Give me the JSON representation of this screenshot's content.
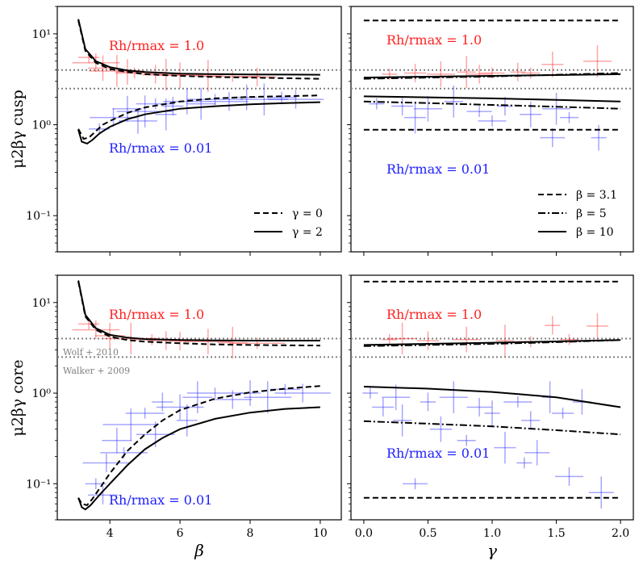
{
  "figure": {
    "y_labels": {
      "top": "μ2βγ cusp",
      "bottom": "μ2βγ core"
    },
    "x_labels": {
      "left": "β",
      "right": "γ"
    },
    "ref_labels": {
      "wolf": "Wolf + 2010",
      "walker": "Walker + 2009"
    },
    "annot_high": "Rh/rmax = 1.0",
    "annot_low": "Rh/rmax = 0.01",
    "legend_gamma": [
      {
        "label": "γ = 0",
        "style": "dashed"
      },
      {
        "label": "γ = 2",
        "style": "solid"
      }
    ],
    "legend_beta": [
      {
        "label": "β = 3.1",
        "style": "dashed"
      },
      {
        "label": "β = 5",
        "style": "dashdot"
      },
      {
        "label": "β = 10",
        "style": "solid"
      }
    ],
    "colors": {
      "high": "#ff2020",
      "low": "#2020ff",
      "ref": "#808080"
    }
  },
  "chart_data": [
    {
      "id": "cusp-beta",
      "type": "line",
      "xlabel": "β",
      "ylabel": "μ2βγ cusp",
      "xlim": [
        2.5,
        10.6
      ],
      "ylim": [
        0.04,
        20
      ],
      "yscale": "log",
      "xticks": [
        4,
        6,
        8,
        10
      ],
      "yticks": [
        0.1,
        1,
        10
      ],
      "reference_lines": [
        {
          "y": 4.0,
          "label": "Wolf + 2010"
        },
        {
          "y": 2.5,
          "label": "Walker + 2009"
        }
      ],
      "series": [
        {
          "name": "γ = 0, Rh/rmax = 1.0",
          "style": "dashed",
          "x": [
            3.1,
            3.3,
            3.6,
            4.0,
            4.5,
            5,
            6,
            7,
            8,
            9,
            10
          ],
          "y": [
            14,
            6.5,
            4.8,
            4.1,
            3.8,
            3.6,
            3.45,
            3.35,
            3.3,
            3.25,
            3.2
          ]
        },
        {
          "name": "γ = 2, Rh/rmax = 1.0",
          "style": "solid",
          "x": [
            3.1,
            3.3,
            3.6,
            4.0,
            4.5,
            5,
            6,
            7,
            8,
            9,
            10
          ],
          "y": [
            14.5,
            6.8,
            5.0,
            4.3,
            3.95,
            3.8,
            3.65,
            3.6,
            3.58,
            3.56,
            3.55
          ]
        },
        {
          "name": "γ = 0, Rh/rmax = 0.01",
          "style": "dashed",
          "x": [
            3.1,
            3.25,
            3.4,
            3.6,
            3.8,
            4,
            4.5,
            5,
            6,
            7,
            8,
            9,
            10
          ],
          "y": [
            0.9,
            0.7,
            0.72,
            0.85,
            1.0,
            1.1,
            1.35,
            1.55,
            1.8,
            1.95,
            2.02,
            2.06,
            2.1
          ]
        },
        {
          "name": "γ = 2, Rh/rmax = 0.01",
          "style": "solid",
          "x": [
            3.1,
            3.2,
            3.35,
            3.5,
            3.7,
            4,
            4.5,
            5,
            6,
            7,
            8,
            9,
            10
          ],
          "y": [
            0.88,
            0.65,
            0.62,
            0.68,
            0.8,
            0.95,
            1.15,
            1.3,
            1.5,
            1.6,
            1.68,
            1.73,
            1.77
          ]
        }
      ]
    },
    {
      "id": "cusp-gamma",
      "type": "line",
      "xlabel": "γ",
      "ylabel": "μ2βγ cusp",
      "xlim": [
        -0.1,
        2.1
      ],
      "ylim": [
        0.04,
        20
      ],
      "yscale": "log",
      "xticks": [
        0.0,
        0.5,
        1.0,
        1.5,
        2.0
      ],
      "yticks": [
        0.1,
        1,
        10
      ],
      "reference_lines": [
        {
          "y": 4.0
        },
        {
          "y": 2.5
        }
      ],
      "series": [
        {
          "name": "β = 3.1, Rh/rmax = 1.0",
          "style": "dashed",
          "x": [
            0,
            2
          ],
          "y": [
            14,
            14
          ]
        },
        {
          "name": "β = 5, Rh/rmax = 1.0",
          "style": "dashdot",
          "x": [
            0,
            0.5,
            1,
            1.5,
            2
          ],
          "y": [
            3.2,
            3.3,
            3.4,
            3.55,
            3.7
          ]
        },
        {
          "name": "β = 10, Rh/rmax = 1.0",
          "style": "solid",
          "x": [
            0,
            0.5,
            1,
            1.5,
            2
          ],
          "y": [
            3.3,
            3.38,
            3.45,
            3.52,
            3.6
          ]
        },
        {
          "name": "β = 3.1, Rh/rmax = 0.01",
          "style": "dashed",
          "x": [
            0,
            2
          ],
          "y": [
            0.88,
            0.88
          ]
        },
        {
          "name": "β = 5, Rh/rmax = 0.01",
          "style": "dashdot",
          "x": [
            0,
            0.5,
            1,
            1.5,
            2
          ],
          "y": [
            1.8,
            1.73,
            1.65,
            1.58,
            1.5
          ]
        },
        {
          "name": "β = 10, Rh/rmax = 0.01",
          "style": "solid",
          "x": [
            0,
            0.5,
            1,
            1.5,
            2
          ],
          "y": [
            2.05,
            2.0,
            1.95,
            1.88,
            1.8
          ]
        }
      ]
    },
    {
      "id": "core-beta",
      "type": "line",
      "xlabel": "β",
      "ylabel": "μ2βγ core",
      "xlim": [
        2.5,
        10.6
      ],
      "ylim": [
        0.04,
        20
      ],
      "yscale": "log",
      "xticks": [
        4,
        6,
        8,
        10
      ],
      "yticks": [
        0.1,
        1,
        10
      ],
      "reference_lines": [
        {
          "y": 4.0,
          "label": "Wolf + 2010"
        },
        {
          "y": 2.5,
          "label": "Walker + 2009"
        }
      ],
      "series": [
        {
          "name": "γ = 0, Rh/rmax = 1.0",
          "style": "dashed",
          "x": [
            3.1,
            3.3,
            3.6,
            4.0,
            4.5,
            5,
            6,
            7,
            8,
            9,
            10
          ],
          "y": [
            17,
            7,
            5.0,
            4.2,
            3.85,
            3.7,
            3.55,
            3.45,
            3.4,
            3.37,
            3.35
          ]
        },
        {
          "name": "γ = 2, Rh/rmax = 1.0",
          "style": "solid",
          "x": [
            3.1,
            3.3,
            3.6,
            4.0,
            4.5,
            5,
            6,
            7,
            8,
            9,
            10
          ],
          "y": [
            17.5,
            7.3,
            5.2,
            4.4,
            4.1,
            3.95,
            3.85,
            3.82,
            3.8,
            3.8,
            3.8
          ]
        },
        {
          "name": "γ = 0, Rh/rmax = 0.01",
          "style": "dashed",
          "x": [
            3.1,
            3.2,
            3.35,
            3.5,
            3.8,
            4,
            4.5,
            5,
            5.5,
            6,
            7,
            8,
            9,
            10
          ],
          "y": [
            0.07,
            0.06,
            0.058,
            0.068,
            0.1,
            0.13,
            0.23,
            0.35,
            0.5,
            0.65,
            0.87,
            1.02,
            1.12,
            1.2
          ]
        },
        {
          "name": "γ = 2, Rh/rmax = 0.01",
          "style": "solid",
          "x": [
            3.1,
            3.2,
            3.3,
            3.45,
            3.7,
            4,
            4.5,
            5,
            5.5,
            6,
            7,
            8,
            9,
            10
          ],
          "y": [
            0.07,
            0.055,
            0.052,
            0.058,
            0.075,
            0.1,
            0.16,
            0.24,
            0.32,
            0.4,
            0.52,
            0.61,
            0.67,
            0.7
          ]
        }
      ]
    },
    {
      "id": "core-gamma",
      "type": "line",
      "xlabel": "γ",
      "ylabel": "μ2βγ core",
      "xlim": [
        -0.1,
        2.1
      ],
      "ylim": [
        0.04,
        20
      ],
      "yscale": "log",
      "xticks": [
        0.0,
        0.5,
        1.0,
        1.5,
        2.0
      ],
      "yticks": [
        0.1,
        1,
        10
      ],
      "reference_lines": [
        {
          "y": 4.0
        },
        {
          "y": 2.5
        }
      ],
      "series": [
        {
          "name": "β = 3.1, Rh/rmax = 1.0",
          "style": "dashed",
          "x": [
            0,
            2
          ],
          "y": [
            17,
            17
          ]
        },
        {
          "name": "β = 5, Rh/rmax = 1.0",
          "style": "dashdot",
          "x": [
            0,
            0.5,
            1,
            1.5,
            2
          ],
          "y": [
            3.3,
            3.4,
            3.5,
            3.65,
            3.85
          ]
        },
        {
          "name": "β = 10, Rh/rmax = 1.0",
          "style": "solid",
          "x": [
            0,
            0.5,
            1,
            1.5,
            2
          ],
          "y": [
            3.4,
            3.5,
            3.6,
            3.72,
            3.85
          ]
        },
        {
          "name": "β = 3.1, Rh/rmax = 0.01",
          "style": "dashed",
          "x": [
            0,
            2
          ],
          "y": [
            0.07,
            0.07
          ]
        },
        {
          "name": "β = 5, Rh/rmax = 0.01",
          "style": "dashdot",
          "x": [
            0,
            0.5,
            1,
            1.5,
            2
          ],
          "y": [
            0.49,
            0.46,
            0.43,
            0.39,
            0.35
          ]
        },
        {
          "name": "β = 10, Rh/rmax = 0.01",
          "style": "solid",
          "x": [
            0,
            0.5,
            1,
            1.5,
            2
          ],
          "y": [
            1.18,
            1.12,
            1.03,
            0.9,
            0.7
          ]
        }
      ]
    }
  ],
  "error_points": {
    "cusp-beta": {
      "high": [
        [
          3.4,
          5.5
        ],
        [
          3.6,
          4.8
        ],
        [
          3.8,
          4.2
        ],
        [
          4.2,
          3.9
        ],
        [
          4.7,
          3.7
        ],
        [
          5.3,
          3.6
        ],
        [
          6.0,
          3.5
        ],
        [
          6.8,
          3.45
        ],
        [
          7.5,
          3.4
        ],
        [
          8.2,
          3.35
        ],
        [
          4.5,
          3.8
        ],
        [
          5.6,
          3.55
        ]
      ],
      "low": [
        [
          3.7,
          0.9
        ],
        [
          4.1,
          1.2
        ],
        [
          4.5,
          1.5
        ],
        [
          5.0,
          1.4
        ],
        [
          5.3,
          1.7
        ],
        [
          5.8,
          1.6
        ],
        [
          6.2,
          1.8
        ],
        [
          6.6,
          1.7
        ],
        [
          7.0,
          1.9
        ],
        [
          7.4,
          1.8
        ],
        [
          7.9,
          2.0
        ],
        [
          8.4,
          1.9
        ],
        [
          8.9,
          2.0
        ],
        [
          9.3,
          1.9
        ],
        [
          4.8,
          1.1
        ],
        [
          5.6,
          1.3
        ]
      ]
    },
    "cusp-gamma": {
      "high": [
        [
          0.2,
          3.6
        ],
        [
          0.4,
          3.7
        ],
        [
          0.6,
          3.6
        ],
        [
          0.8,
          3.8
        ],
        [
          1.0,
          3.7
        ],
        [
          1.2,
          3.8
        ],
        [
          1.47,
          4.6
        ],
        [
          1.82,
          5.0
        ],
        [
          1.3,
          3.7
        ],
        [
          0.9,
          3.6
        ]
      ],
      "low": [
        [
          0.1,
          1.7
        ],
        [
          0.3,
          1.6
        ],
        [
          0.5,
          1.5
        ],
        [
          0.7,
          1.8
        ],
        [
          0.9,
          1.4
        ],
        [
          1.1,
          1.6
        ],
        [
          1.3,
          1.3
        ],
        [
          1.5,
          1.5
        ],
        [
          1.6,
          1.2
        ],
        [
          1.47,
          0.72
        ],
        [
          1.83,
          0.72
        ],
        [
          0.4,
          1.2
        ],
        [
          1.0,
          1.1
        ]
      ]
    },
    "core-beta": {
      "high": [
        [
          3.4,
          5.8
        ],
        [
          3.6,
          5.0
        ],
        [
          4.0,
          4.3
        ],
        [
          4.6,
          4.0
        ],
        [
          5.2,
          3.9
        ],
        [
          6.0,
          3.75
        ],
        [
          6.8,
          3.7
        ],
        [
          7.5,
          3.6
        ],
        [
          8.2,
          3.55
        ],
        [
          5.6,
          3.8
        ]
      ],
      "low": [
        [
          3.6,
          0.1
        ],
        [
          3.9,
          0.17
        ],
        [
          4.2,
          0.3
        ],
        [
          4.6,
          0.45
        ],
        [
          5.0,
          0.6
        ],
        [
          5.5,
          0.8
        ],
        [
          6.0,
          0.7
        ],
        [
          6.5,
          0.9
        ],
        [
          7.0,
          1.0
        ],
        [
          7.5,
          0.85
        ],
        [
          8.0,
          1.0
        ],
        [
          8.5,
          0.9
        ],
        [
          9.0,
          1.1
        ],
        [
          9.5,
          1.0
        ],
        [
          5.3,
          0.35
        ],
        [
          6.2,
          0.5
        ],
        [
          4.4,
          0.22
        ],
        [
          3.8,
          0.075
        ]
      ]
    },
    "core-gamma": {
      "high": [
        [
          0.2,
          3.9
        ],
        [
          0.5,
          3.8
        ],
        [
          0.8,
          3.9
        ],
        [
          1.1,
          3.8
        ],
        [
          1.3,
          3.7
        ],
        [
          1.47,
          5.6
        ],
        [
          1.82,
          5.5
        ],
        [
          0.3,
          4.0
        ],
        [
          1.6,
          3.9
        ]
      ],
      "low": [
        [
          0.05,
          1.0
        ],
        [
          0.15,
          0.7
        ],
        [
          0.25,
          0.9
        ],
        [
          0.3,
          0.5
        ],
        [
          0.4,
          0.1
        ],
        [
          0.5,
          0.8
        ],
        [
          0.6,
          0.4
        ],
        [
          0.7,
          0.9
        ],
        [
          0.8,
          0.3
        ],
        [
          0.9,
          0.7
        ],
        [
          1.0,
          0.6
        ],
        [
          1.1,
          0.25
        ],
        [
          1.2,
          0.8
        ],
        [
          1.3,
          0.5
        ],
        [
          1.35,
          0.22
        ],
        [
          1.45,
          0.9
        ],
        [
          1.55,
          0.6
        ],
        [
          1.6,
          0.12
        ],
        [
          1.7,
          0.8
        ],
        [
          1.85,
          0.08
        ],
        [
          1.25,
          0.17
        ]
      ]
    }
  }
}
